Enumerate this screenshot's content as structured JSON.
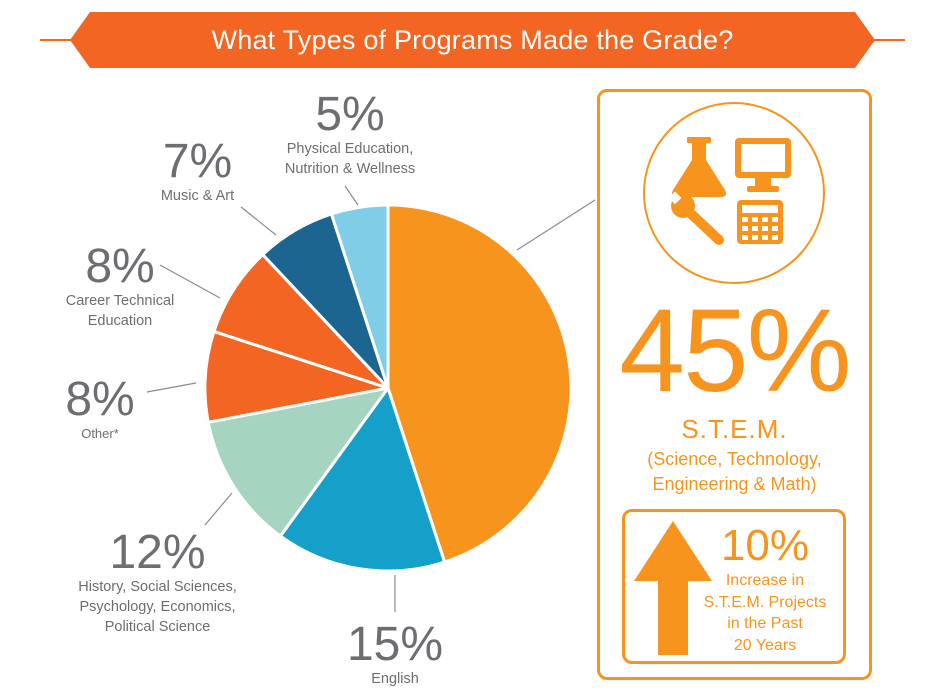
{
  "colors": {
    "banner": "#f26522",
    "stem_accent": "#f7941d",
    "text_gray": "#6d6e71",
    "leader_line": "#8a8c8e"
  },
  "title": "What Types of Programs Made the Grade?",
  "chart_data": {
    "type": "pie",
    "title": "What Types of Programs Made the Grade?",
    "start_angle_deg": 0,
    "direction": "clockwise",
    "slices": [
      {
        "pct_label": "45%",
        "value": 45,
        "lines": [
          "S.T.E.M."
        ],
        "color": "#f7941d"
      },
      {
        "pct_label": "15%",
        "value": 15,
        "lines": [
          "English"
        ],
        "color": "#14a0c9"
      },
      {
        "pct_label": "12%",
        "value": 12,
        "lines": [
          "History, Social Sciences,",
          "Psychology, Economics,",
          "Political Science"
        ],
        "color": "#a5d4c0"
      },
      {
        "pct_label": "8%",
        "value": 8,
        "lines": [
          "Other*"
        ],
        "color": "#f26522"
      },
      {
        "pct_label": "8%",
        "value": 8,
        "lines": [
          "Career Technical",
          "Education"
        ],
        "color": "#f26522"
      },
      {
        "pct_label": "7%",
        "value": 7,
        "lines": [
          "Music & Art"
        ],
        "color": "#1c6590"
      },
      {
        "pct_label": "5%",
        "value": 5,
        "lines": [
          "Physical Education,",
          "Nutrition & Wellness"
        ],
        "color": "#7fcde6"
      }
    ]
  },
  "stem_panel": {
    "icons": [
      "flask-icon",
      "monitor-icon",
      "wrench-icon",
      "calculator-icon"
    ],
    "pct": "45%",
    "label": "S.T.E.M.",
    "description_lines": [
      "(Science, Technology,",
      "Engineering & Math)"
    ],
    "increase": {
      "icon": "up-arrow-icon",
      "pct": "10%",
      "lines": [
        "Increase in",
        "S.T.E.M. Projects",
        "in the Past",
        "20 Years"
      ]
    }
  }
}
